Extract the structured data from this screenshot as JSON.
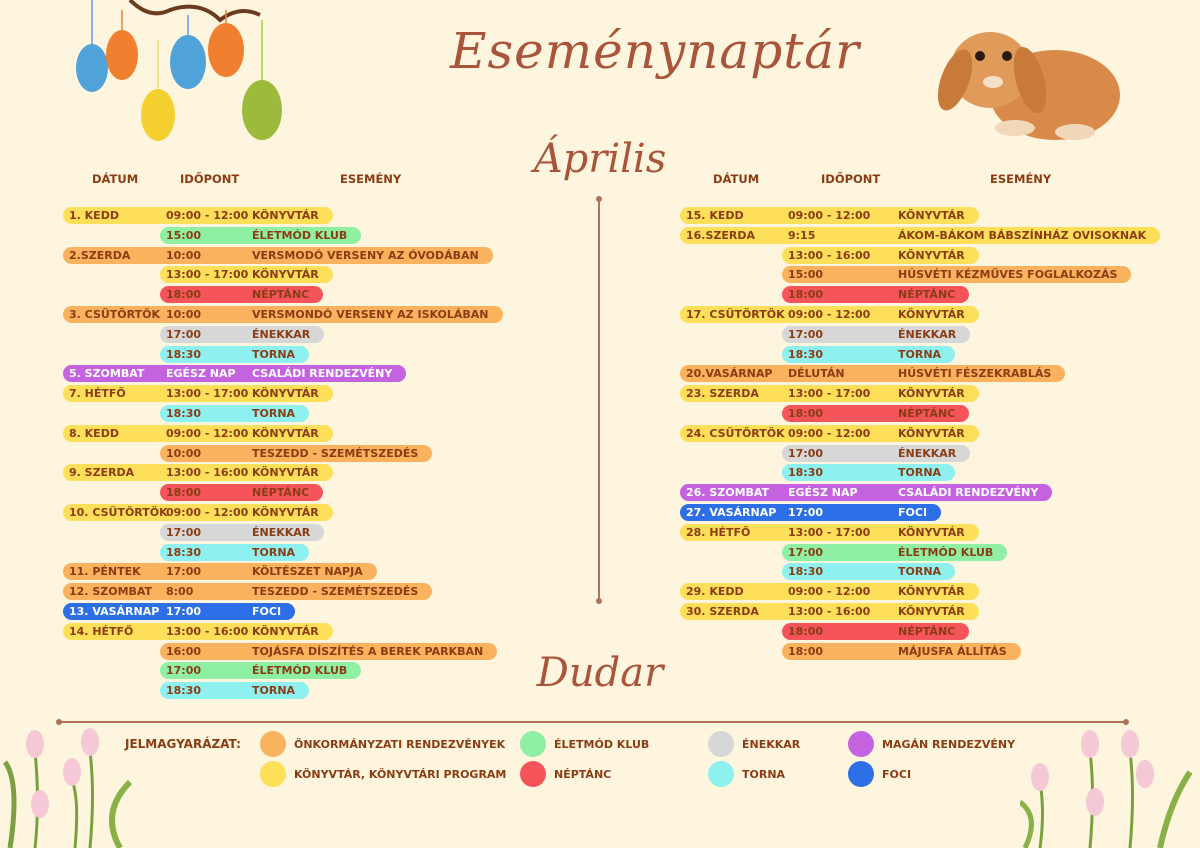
{
  "title": "Eseménynaptár",
  "month": "Április",
  "location": "Dudar",
  "headers": {
    "date": "DÁTUM",
    "time": "IDŐPONT",
    "event": "ESEMÉNY"
  },
  "colors": {
    "orange": "#f9b25e",
    "yellow": "#fddf5a",
    "green": "#8ff0a4",
    "red": "#f5555a",
    "grey": "#d7d7d7",
    "cyan": "#8ff0f0",
    "purple": "#c562e0",
    "blue": "#2c6fe6"
  },
  "left_rows": [
    {
      "date": "1. KEDD",
      "time": "09:00 - 12:00",
      "event": "KÖNYVTÁR",
      "color": "yellow"
    },
    {
      "date": "",
      "time": "15:00",
      "event": "ÉLETMÓD KLUB",
      "color": "green"
    },
    {
      "date": "2.SZERDA",
      "time": "10:00",
      "event": "VERSMODÓ VERSENY AZ ÓVODÁBAN",
      "color": "orange"
    },
    {
      "date": "",
      "time": "13:00 - 17:00",
      "event": "KÖNYVTÁR",
      "color": "yellow"
    },
    {
      "date": "",
      "time": "18:00",
      "event": "NÉPTÁNC",
      "color": "red"
    },
    {
      "date": "3. CSÜTÖRTÖK",
      "time": "10:00",
      "event": "VERSMONDÓ VERSENY AZ ISKOLÁBAN",
      "color": "orange"
    },
    {
      "date": "",
      "time": "17:00",
      "event": "ÉNEKKAR",
      "color": "grey"
    },
    {
      "date": "",
      "time": "18:30",
      "event": "TORNA",
      "color": "cyan"
    },
    {
      "date": "5. SZOMBAT",
      "time": "EGÉSZ NAP",
      "event": "CSALÁDI RENDEZVÉNY",
      "color": "purple"
    },
    {
      "date": "7. HÉTFŐ",
      "time": "13:00 - 17:00",
      "event": "KÖNYVTÁR",
      "color": "yellow"
    },
    {
      "date": "",
      "time": "18:30",
      "event": "TORNA",
      "color": "cyan"
    },
    {
      "date": "8. KEDD",
      "time": "09:00 - 12:00",
      "event": "KÖNYVTÁR",
      "color": "yellow"
    },
    {
      "date": "",
      "time": "10:00",
      "event": "TESZEDD - SZEMÉTSZEDÉS",
      "color": "orange"
    },
    {
      "date": "9. SZERDA",
      "time": "13:00 - 16:00",
      "event": "KÖNYVTÁR",
      "color": "yellow"
    },
    {
      "date": "",
      "time": "18:00",
      "event": "NÉPTÁNC",
      "color": "red"
    },
    {
      "date": "10. CSÜTÖRTÖK",
      "time": "09:00 - 12:00",
      "event": "KÖNYVTÁR",
      "color": "yellow"
    },
    {
      "date": "",
      "time": "17:00",
      "event": "ÉNEKKAR",
      "color": "grey"
    },
    {
      "date": "",
      "time": "18:30",
      "event": "TORNA",
      "color": "cyan"
    },
    {
      "date": "11. PÉNTEK",
      "time": "17:00",
      "event": "KÖLTÉSZET NAPJA",
      "color": "orange"
    },
    {
      "date": "12. SZOMBAT",
      "time": "8:00",
      "event": "TESZEDD - SZEMÉTSZEDÉS",
      "color": "orange"
    },
    {
      "date": "13. VASÁRNAP",
      "time": "17:00",
      "event": "FOCI",
      "color": "blue"
    },
    {
      "date": "14. HÉTFŐ",
      "time": "13:00 - 16:00",
      "event": "KÖNYVTÁR",
      "color": "yellow"
    },
    {
      "date": "",
      "time": "16:00",
      "event": "TOJÁSFA DÍSZÍTÉS A BEREK PARKBAN",
      "color": "orange"
    },
    {
      "date": "",
      "time": "17:00",
      "event": "ÉLETMÓD KLUB",
      "color": "green"
    },
    {
      "date": "",
      "time": "18:30",
      "event": "TORNA",
      "color": "cyan"
    }
  ],
  "right_rows": [
    {
      "date": "15. KEDD",
      "time": "09:00 - 12:00",
      "event": "KÖNYVTÁR",
      "color": "yellow"
    },
    {
      "date": "16.SZERDA",
      "time": "9:15",
      "event": "ÁKOM-BÁKOM BÁBSZÍNHÁZ OVISOKNAK",
      "color": "yellow"
    },
    {
      "date": "",
      "time": "13:00 - 16:00",
      "event": "KÖNYVTÁR",
      "color": "yellow"
    },
    {
      "date": "",
      "time": "15:00",
      "event": "HÚSVÉTI KÉZMŰVES FOGLALKOZÁS",
      "color": "orange"
    },
    {
      "date": "",
      "time": "18:00",
      "event": "NÉPTÁNC",
      "color": "red"
    },
    {
      "date": "17. CSÜTÖRTÖK",
      "time": "09:00 - 12:00",
      "event": "KÖNYVTÁR",
      "color": "yellow"
    },
    {
      "date": "",
      "time": "17:00",
      "event": "ÉNEKKAR",
      "color": "grey"
    },
    {
      "date": "",
      "time": "18:30",
      "event": "TORNA",
      "color": "cyan"
    },
    {
      "date": "20.VASÁRNAP",
      "time": "DÉLUTÁN",
      "event": "HÚSVÉTI FÉSZEKRABLÁS",
      "color": "orange"
    },
    {
      "date": "23. SZERDA",
      "time": "13:00 - 17:00",
      "event": "KÖNYVTÁR",
      "color": "yellow"
    },
    {
      "date": "",
      "time": "18:00",
      "event": "NÉPTÁNC",
      "color": "red"
    },
    {
      "date": "24. CSÜTÖRTÖK",
      "time": "09:00 - 12:00",
      "event": "KÖNYVTÁR",
      "color": "yellow"
    },
    {
      "date": "",
      "time": "17:00",
      "event": "ÉNEKKAR",
      "color": "grey"
    },
    {
      "date": "",
      "time": "18:30",
      "event": "TORNA",
      "color": "cyan"
    },
    {
      "date": "26. SZOMBAT",
      "time": "EGÉSZ NAP",
      "event": "CSALÁDI RENDEZVÉNY",
      "color": "purple"
    },
    {
      "date": "27. VASÁRNAP",
      "time": "17:00",
      "event": "FOCI",
      "color": "blue"
    },
    {
      "date": "28. HÉTFŐ",
      "time": "13:00 - 17:00",
      "event": "KÖNYVTÁR",
      "color": "yellow"
    },
    {
      "date": "",
      "time": "17:00",
      "event": "ÉLETMÓD KLUB",
      "color": "green"
    },
    {
      "date": "",
      "time": "18:30",
      "event": "TORNA",
      "color": "cyan"
    },
    {
      "date": "29. KEDD",
      "time": "09:00 - 12:00",
      "event": "KÖNYVTÁR",
      "color": "yellow"
    },
    {
      "date": "30. SZERDA",
      "time": "13:00 - 16:00",
      "event": "KÖNYVTÁR",
      "color": "yellow"
    },
    {
      "date": "",
      "time": "18:00",
      "event": "NÉPTÁNC",
      "color": "red"
    },
    {
      "date": "",
      "time": "18:00",
      "event": "MÁJUSFA ÁLLÍTÁS",
      "color": "orange"
    }
  ],
  "legend": {
    "title": "JELMAGYARÁZAT:",
    "items": [
      {
        "label": "ÖNKORMÁNYZATI RENDEZVÉNYEK",
        "color": "orange"
      },
      {
        "label": "KÖNYVTÁR, KÖNYVTÁRI PROGRAM",
        "color": "yellow"
      },
      {
        "label": "ÉLETMÓD KLUB",
        "color": "green"
      },
      {
        "label": "NÉPTÁNC",
        "color": "red"
      },
      {
        "label": "ÉNEKKAR",
        "color": "grey"
      },
      {
        "label": "TORNA",
        "color": "cyan"
      },
      {
        "label": "MAGÁN RENDEZVÉNY",
        "color": "purple"
      },
      {
        "label": "FOCI",
        "color": "blue"
      }
    ]
  }
}
